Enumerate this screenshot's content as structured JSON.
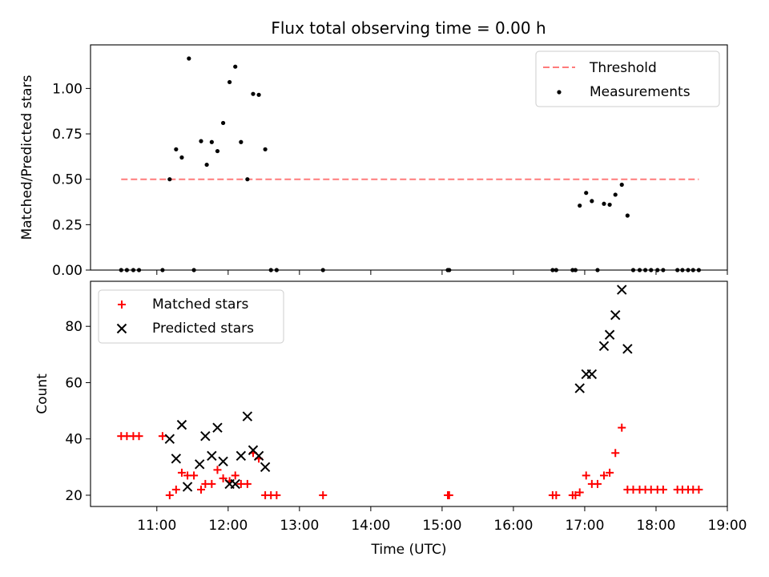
{
  "chart_data": [
    {
      "panel": "top",
      "type": "scatter",
      "title": "Flux total observing time = 0.00 h",
      "ylabel": "Matched/Predicted stars",
      "ylim": [
        0,
        1.24
      ],
      "yticks": [
        0.0,
        0.25,
        0.5,
        0.75,
        1.0
      ],
      "ytick_labels": [
        "0.00",
        "0.25",
        "0.50",
        "0.75",
        "1.00"
      ],
      "xlim": [
        10.07,
        19.0
      ],
      "legend": {
        "placement": "top-right",
        "entries": [
          "Threshold",
          "Measurements"
        ]
      },
      "threshold": {
        "name": "Threshold",
        "value": 0.5,
        "x_range": [
          10.5,
          18.6
        ],
        "color": "#ff7b7b"
      },
      "series": [
        {
          "name": "Measurements",
          "color": "#000000",
          "points": [
            {
              "x": 10.5,
              "y": 0.0
            },
            {
              "x": 10.58,
              "y": 0.0
            },
            {
              "x": 10.67,
              "y": 0.0
            },
            {
              "x": 10.75,
              "y": 0.0
            },
            {
              "x": 11.08,
              "y": 0.0
            },
            {
              "x": 11.18,
              "y": 0.5
            },
            {
              "x": 11.27,
              "y": 0.665
            },
            {
              "x": 11.35,
              "y": 0.62
            },
            {
              "x": 11.45,
              "y": 1.165
            },
            {
              "x": 11.52,
              "y": 0.0
            },
            {
              "x": 11.62,
              "y": 0.71
            },
            {
              "x": 11.7,
              "y": 0.58
            },
            {
              "x": 11.77,
              "y": 0.705
            },
            {
              "x": 11.85,
              "y": 0.655
            },
            {
              "x": 11.93,
              "y": 0.81
            },
            {
              "x": 12.02,
              "y": 1.035
            },
            {
              "x": 12.1,
              "y": 1.12
            },
            {
              "x": 12.18,
              "y": 0.705
            },
            {
              "x": 12.27,
              "y": 0.5
            },
            {
              "x": 12.35,
              "y": 0.97
            },
            {
              "x": 12.43,
              "y": 0.965
            },
            {
              "x": 12.52,
              "y": 0.665
            },
            {
              "x": 12.6,
              "y": 0.0
            },
            {
              "x": 12.68,
              "y": 0.0
            },
            {
              "x": 13.33,
              "y": 0.0
            },
            {
              "x": 15.08,
              "y": 0.0
            },
            {
              "x": 15.1,
              "y": 0.0
            },
            {
              "x": 16.55,
              "y": 0.0
            },
            {
              "x": 16.6,
              "y": 0.0
            },
            {
              "x": 16.83,
              "y": 0.0
            },
            {
              "x": 16.87,
              "y": 0.0
            },
            {
              "x": 16.93,
              "y": 0.355
            },
            {
              "x": 17.02,
              "y": 0.425
            },
            {
              "x": 17.1,
              "y": 0.38
            },
            {
              "x": 17.18,
              "y": 0.0
            },
            {
              "x": 17.27,
              "y": 0.365
            },
            {
              "x": 17.35,
              "y": 0.36
            },
            {
              "x": 17.43,
              "y": 0.415
            },
            {
              "x": 17.52,
              "y": 0.47
            },
            {
              "x": 17.6,
              "y": 0.3
            },
            {
              "x": 17.68,
              "y": 0.0
            },
            {
              "x": 17.77,
              "y": 0.0
            },
            {
              "x": 17.85,
              "y": 0.0
            },
            {
              "x": 17.93,
              "y": 0.0
            },
            {
              "x": 18.02,
              "y": 0.0
            },
            {
              "x": 18.1,
              "y": 0.0
            },
            {
              "x": 18.3,
              "y": 0.0
            },
            {
              "x": 18.37,
              "y": 0.0
            },
            {
              "x": 18.45,
              "y": 0.0
            },
            {
              "x": 18.52,
              "y": 0.0
            },
            {
              "x": 18.6,
              "y": 0.0
            }
          ]
        }
      ]
    },
    {
      "panel": "bottom",
      "type": "scatter",
      "xlabel": "Time (UTC)",
      "ylabel": "Count",
      "ylim": [
        16,
        96
      ],
      "yticks": [
        20,
        40,
        60,
        80
      ],
      "ytick_labels": [
        "20",
        "40",
        "60",
        "80"
      ],
      "xlim": [
        10.07,
        19.0
      ],
      "xticks": [
        11,
        12,
        13,
        14,
        15,
        16,
        17,
        18,
        19
      ],
      "xtick_labels": [
        "11:00",
        "12:00",
        "13:00",
        "14:00",
        "15:00",
        "16:00",
        "17:00",
        "18:00",
        "19:00"
      ],
      "legend": {
        "placement": "top-left",
        "entries": [
          "Matched stars",
          "Predicted stars"
        ]
      },
      "series": [
        {
          "name": "Matched stars",
          "marker": "plus",
          "color": "#ff0000",
          "points": [
            {
              "x": 10.5,
              "y": 41
            },
            {
              "x": 10.58,
              "y": 41
            },
            {
              "x": 10.67,
              "y": 41
            },
            {
              "x": 10.75,
              "y": 41
            },
            {
              "x": 11.08,
              "y": 41
            },
            {
              "x": 11.18,
              "y": 20
            },
            {
              "x": 11.27,
              "y": 22
            },
            {
              "x": 11.35,
              "y": 28
            },
            {
              "x": 11.43,
              "y": 27
            },
            {
              "x": 11.52,
              "y": 27
            },
            {
              "x": 11.62,
              "y": 22
            },
            {
              "x": 11.68,
              "y": 24
            },
            {
              "x": 11.77,
              "y": 24
            },
            {
              "x": 11.85,
              "y": 29
            },
            {
              "x": 11.93,
              "y": 26
            },
            {
              "x": 12.02,
              "y": 25
            },
            {
              "x": 12.1,
              "y": 27
            },
            {
              "x": 12.18,
              "y": 24
            },
            {
              "x": 12.27,
              "y": 24
            },
            {
              "x": 12.35,
              "y": 35
            },
            {
              "x": 12.43,
              "y": 33
            },
            {
              "x": 12.52,
              "y": 20
            },
            {
              "x": 12.6,
              "y": 20
            },
            {
              "x": 12.68,
              "y": 20
            },
            {
              "x": 13.33,
              "y": 20
            },
            {
              "x": 15.08,
              "y": 20
            },
            {
              "x": 15.1,
              "y": 20
            },
            {
              "x": 16.55,
              "y": 20
            },
            {
              "x": 16.6,
              "y": 20
            },
            {
              "x": 16.83,
              "y": 20
            },
            {
              "x": 16.87,
              "y": 20
            },
            {
              "x": 16.93,
              "y": 21
            },
            {
              "x": 17.02,
              "y": 27
            },
            {
              "x": 17.1,
              "y": 24
            },
            {
              "x": 17.18,
              "y": 24
            },
            {
              "x": 17.27,
              "y": 27
            },
            {
              "x": 17.35,
              "y": 28
            },
            {
              "x": 17.43,
              "y": 35
            },
            {
              "x": 17.52,
              "y": 44
            },
            {
              "x": 17.6,
              "y": 22
            },
            {
              "x": 17.68,
              "y": 22
            },
            {
              "x": 17.77,
              "y": 22
            },
            {
              "x": 17.85,
              "y": 22
            },
            {
              "x": 17.93,
              "y": 22
            },
            {
              "x": 18.02,
              "y": 22
            },
            {
              "x": 18.1,
              "y": 22
            },
            {
              "x": 18.3,
              "y": 22
            },
            {
              "x": 18.37,
              "y": 22
            },
            {
              "x": 18.45,
              "y": 22
            },
            {
              "x": 18.52,
              "y": 22
            },
            {
              "x": 18.6,
              "y": 22
            }
          ]
        },
        {
          "name": "Predicted stars",
          "marker": "x",
          "color": "#000000",
          "points": [
            {
              "x": 11.18,
              "y": 40
            },
            {
              "x": 11.27,
              "y": 33
            },
            {
              "x": 11.35,
              "y": 45
            },
            {
              "x": 11.43,
              "y": 23
            },
            {
              "x": 11.6,
              "y": 31
            },
            {
              "x": 11.68,
              "y": 41
            },
            {
              "x": 11.77,
              "y": 34
            },
            {
              "x": 11.85,
              "y": 44
            },
            {
              "x": 11.93,
              "y": 32
            },
            {
              "x": 12.02,
              "y": 24
            },
            {
              "x": 12.1,
              "y": 24
            },
            {
              "x": 12.18,
              "y": 34
            },
            {
              "x": 12.27,
              "y": 48
            },
            {
              "x": 12.35,
              "y": 36
            },
            {
              "x": 12.43,
              "y": 34
            },
            {
              "x": 12.52,
              "y": 30
            },
            {
              "x": 16.93,
              "y": 58
            },
            {
              "x": 17.02,
              "y": 63
            },
            {
              "x": 17.1,
              "y": 63
            },
            {
              "x": 17.27,
              "y": 73
            },
            {
              "x": 17.35,
              "y": 77
            },
            {
              "x": 17.43,
              "y": 84
            },
            {
              "x": 17.52,
              "y": 93
            },
            {
              "x": 17.6,
              "y": 72
            }
          ]
        }
      ]
    }
  ]
}
